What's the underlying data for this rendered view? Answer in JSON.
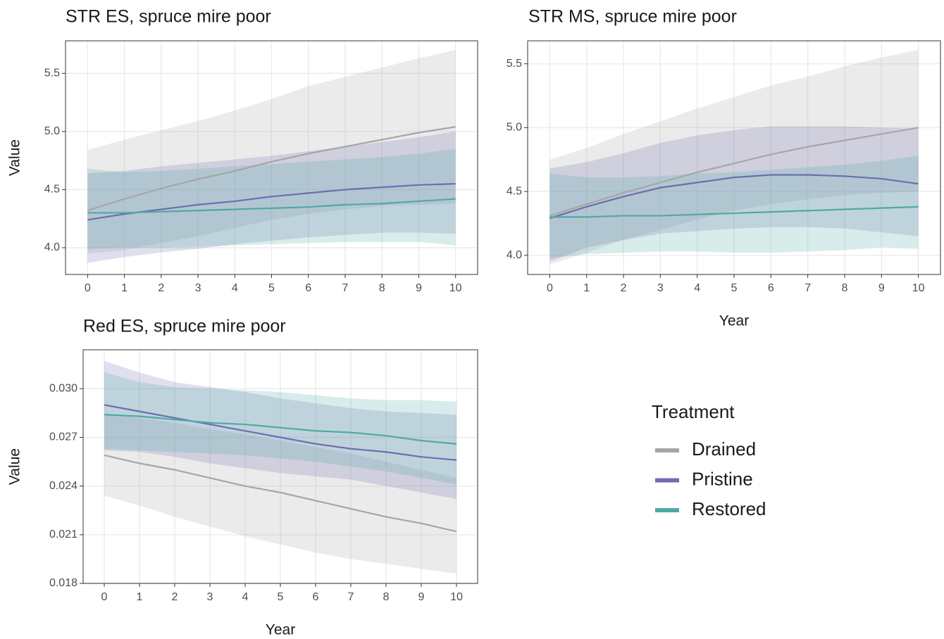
{
  "chart_data": [
    {
      "type": "line",
      "title": "STR ES, spruce mire poor",
      "ylabel": "Value",
      "x": [
        0,
        1,
        2,
        3,
        4,
        5,
        6,
        7,
        8,
        9,
        10
      ],
      "xlim": [
        -0.6,
        10.6
      ],
      "xticks": [
        0,
        1,
        2,
        3,
        4,
        5,
        6,
        7,
        8,
        9,
        10
      ],
      "ylim": [
        3.77,
        5.78
      ],
      "yticks": [
        {
          "value": 4,
          "label": "4.0"
        },
        4.5,
        {
          "value": 5,
          "label": "5.0"
        },
        5.5
      ],
      "grid": true,
      "series": [
        {
          "name": "Drained",
          "color": "#a6a6a6",
          "values": [
            4.32,
            4.42,
            4.51,
            4.59,
            4.66,
            4.74,
            4.81,
            4.87,
            4.93,
            4.99,
            5.04
          ],
          "upper": [
            4.84,
            4.93,
            5.01,
            5.09,
            5.18,
            5.28,
            5.39,
            5.47,
            5.55,
            5.63,
            5.7
          ],
          "lower": [
            3.95,
            3.98,
            4.04,
            4.1,
            4.17,
            4.24,
            4.29,
            4.33,
            4.36,
            4.37,
            4.38
          ]
        },
        {
          "name": "Pristine",
          "color": "#6f6cb1",
          "values": [
            4.24,
            4.29,
            4.33,
            4.37,
            4.4,
            4.44,
            4.47,
            4.5,
            4.52,
            4.54,
            4.55
          ],
          "upper": [
            4.64,
            4.66,
            4.7,
            4.73,
            4.76,
            4.79,
            4.83,
            4.87,
            4.91,
            4.95,
            5.0
          ],
          "lower": [
            3.87,
            3.92,
            3.96,
            3.99,
            4.03,
            4.06,
            4.09,
            4.11,
            4.13,
            4.13,
            4.12
          ]
        },
        {
          "name": "Restored",
          "color": "#4fa9a3",
          "values": [
            4.3,
            4.3,
            4.31,
            4.32,
            4.33,
            4.34,
            4.35,
            4.37,
            4.38,
            4.4,
            4.42
          ],
          "upper": [
            4.68,
            4.65,
            4.66,
            4.68,
            4.7,
            4.72,
            4.74,
            4.76,
            4.78,
            4.81,
            4.85
          ],
          "lower": [
            3.99,
            4.0,
            4.0,
            4.01,
            4.02,
            4.03,
            4.04,
            4.05,
            4.05,
            4.05,
            4.02
          ]
        }
      ]
    },
    {
      "type": "line",
      "title": "STR MS, spruce mire poor",
      "xlabel": "Year",
      "x": [
        0,
        1,
        2,
        3,
        4,
        5,
        6,
        7,
        8,
        9,
        10
      ],
      "xlim": [
        -0.6,
        10.6
      ],
      "xticks": [
        0,
        1,
        2,
        3,
        4,
        5,
        6,
        7,
        8,
        9,
        10
      ],
      "ylim": [
        3.85,
        5.68
      ],
      "yticks": [
        {
          "value": 4,
          "label": "4.0"
        },
        4.5,
        {
          "value": 5,
          "label": "5.0"
        },
        5.5
      ],
      "grid": true,
      "series": [
        {
          "name": "Drained",
          "color": "#a6a6a6",
          "values": [
            4.31,
            4.4,
            4.49,
            4.57,
            4.65,
            4.72,
            4.79,
            4.85,
            4.9,
            4.95,
            5.0
          ],
          "upper": [
            4.75,
            4.84,
            4.95,
            5.05,
            5.15,
            5.24,
            5.33,
            5.4,
            5.48,
            5.55,
            5.61
          ],
          "lower": [
            3.93,
            4.02,
            4.12,
            4.2,
            4.28,
            4.35,
            4.4,
            4.44,
            4.47,
            4.49,
            4.5
          ]
        },
        {
          "name": "Pristine",
          "color": "#6f6cb1",
          "values": [
            4.29,
            4.38,
            4.46,
            4.53,
            4.57,
            4.61,
            4.63,
            4.63,
            4.62,
            4.6,
            4.56
          ],
          "upper": [
            4.68,
            4.73,
            4.8,
            4.88,
            4.94,
            4.98,
            5.01,
            5.01,
            5.01,
            5.0,
            4.99
          ],
          "lower": [
            3.95,
            4.06,
            4.12,
            4.17,
            4.19,
            4.21,
            4.22,
            4.22,
            4.21,
            4.18,
            4.15
          ]
        },
        {
          "name": "Restored",
          "color": "#4fa9a3",
          "values": [
            4.3,
            4.3,
            4.31,
            4.31,
            4.32,
            4.33,
            4.34,
            4.35,
            4.36,
            4.37,
            4.38
          ],
          "upper": [
            4.64,
            4.61,
            4.61,
            4.62,
            4.64,
            4.65,
            4.67,
            4.69,
            4.71,
            4.74,
            4.78
          ],
          "lower": [
            3.98,
            4.01,
            4.02,
            4.03,
            4.03,
            4.02,
            4.02,
            4.03,
            4.04,
            4.06,
            4.05
          ]
        }
      ]
    },
    {
      "type": "line",
      "title": "Red ES, spruce mire poor",
      "xlabel": "Year",
      "ylabel": "Value",
      "x": [
        0,
        1,
        2,
        3,
        4,
        5,
        6,
        7,
        8,
        9,
        10
      ],
      "xlim": [
        -0.6,
        10.6
      ],
      "xticks": [
        0,
        1,
        2,
        3,
        4,
        5,
        6,
        7,
        8,
        9,
        10
      ],
      "ylim": [
        0.018,
        0.0324
      ],
      "yticks": [
        0.018,
        0.021,
        0.024,
        0.027,
        {
          "value": 0.03,
          "label": "0.030"
        }
      ],
      "grid": true,
      "series": [
        {
          "name": "Drained",
          "color": "#a6a6a6",
          "values": [
            0.0259,
            0.0254,
            0.025,
            0.0245,
            0.024,
            0.0236,
            0.0231,
            0.0226,
            0.0221,
            0.0217,
            0.0212
          ],
          "upper": [
            0.0285,
            0.0282,
            0.0279,
            0.0275,
            0.0272,
            0.0268,
            0.0264,
            0.026,
            0.0255,
            0.025,
            0.0245
          ],
          "lower": [
            0.0234,
            0.0228,
            0.0221,
            0.0215,
            0.0209,
            0.0204,
            0.0199,
            0.0195,
            0.0192,
            0.0189,
            0.0186
          ]
        },
        {
          "name": "Pristine",
          "color": "#6f6cb1",
          "values": [
            0.029,
            0.0286,
            0.0282,
            0.0278,
            0.0274,
            0.027,
            0.0266,
            0.0263,
            0.0261,
            0.0258,
            0.0256
          ],
          "upper": [
            0.0317,
            0.031,
            0.0304,
            0.0301,
            0.0298,
            0.0294,
            0.0291,
            0.0288,
            0.0286,
            0.0285,
            0.0284
          ],
          "lower": [
            0.0262,
            0.0261,
            0.0258,
            0.0254,
            0.0251,
            0.0248,
            0.0246,
            0.0244,
            0.024,
            0.0236,
            0.0232
          ]
        },
        {
          "name": "Restored",
          "color": "#4fa9a3",
          "values": [
            0.0284,
            0.0283,
            0.0281,
            0.0279,
            0.0278,
            0.0276,
            0.0274,
            0.0273,
            0.0271,
            0.0268,
            0.0266
          ],
          "upper": [
            0.031,
            0.0304,
            0.0301,
            0.03,
            0.0299,
            0.0298,
            0.0296,
            0.0294,
            0.0293,
            0.0293,
            0.0292
          ],
          "lower": [
            0.0263,
            0.0262,
            0.0261,
            0.026,
            0.0259,
            0.0257,
            0.0255,
            0.0252,
            0.0249,
            0.0245,
            0.0241
          ]
        }
      ]
    }
  ],
  "legend": {
    "title": "Treatment",
    "position": "right"
  }
}
